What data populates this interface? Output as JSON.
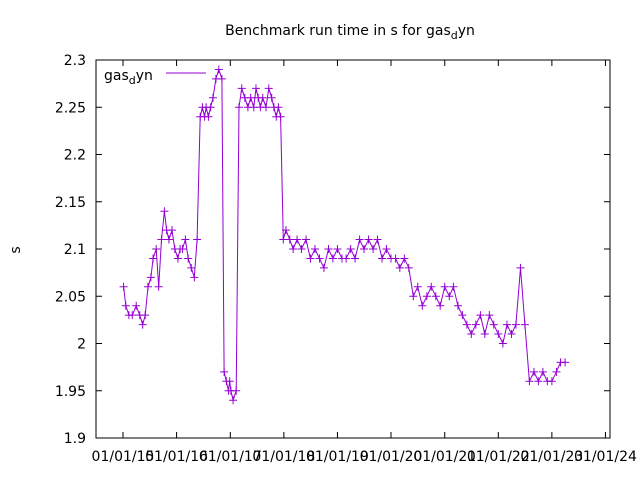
{
  "chart_data": {
    "type": "line",
    "title": {
      "prefix": "Benchmark run time in s for gas",
      "sub": "d",
      "suffix": "yn"
    },
    "ylabel": "s",
    "xlabel": "",
    "ylim": [
      1.9,
      2.3
    ],
    "yticks": [
      "1.9",
      "1.95",
      "2",
      "2.05",
      "2.1",
      "2.15",
      "2.2",
      "2.25",
      "2.3"
    ],
    "xticks": [
      "01/01/15",
      "01/01/16",
      "01/01/17",
      "01/01/18",
      "01/01/19",
      "01/01/20",
      "01/01/21",
      "01/01/22",
      "01/01/23",
      "01/01/24"
    ],
    "xlim": [
      "2014-07-01",
      "2024-02-01"
    ],
    "grid": false,
    "legend_position": "top-left",
    "series": [
      {
        "name": {
          "prefix": "gas",
          "sub": "d",
          "suffix": "yn"
        },
        "color": "#9400d3",
        "marker": "plus",
        "x": [
          "2015-01-05",
          "2015-01-20",
          "2015-02-10",
          "2015-03-05",
          "2015-04-01",
          "2015-04-25",
          "2015-05-15",
          "2015-06-01",
          "2015-06-20",
          "2015-07-10",
          "2015-07-25",
          "2015-08-15",
          "2015-09-01",
          "2015-09-20",
          "2015-10-10",
          "2015-10-25",
          "2015-11-10",
          "2015-12-01",
          "2015-12-20",
          "2016-01-10",
          "2016-01-25",
          "2016-02-10",
          "2016-03-01",
          "2016-03-20",
          "2016-04-10",
          "2016-05-01",
          "2016-05-20",
          "2016-06-10",
          "2016-06-25",
          "2016-07-10",
          "2016-07-20",
          "2016-08-05",
          "2016-08-20",
          "2016-09-05",
          "2016-09-25",
          "2016-10-15",
          "2016-11-05",
          "2016-11-20",
          "2016-12-05",
          "2016-12-20",
          "2016-12-28",
          "2017-01-05",
          "2017-01-20",
          "2017-02-10",
          "2017-03-01",
          "2017-03-20",
          "2017-04-10",
          "2017-05-01",
          "2017-05-20",
          "2017-06-10",
          "2017-06-25",
          "2017-07-10",
          "2017-07-25",
          "2017-08-10",
          "2017-09-01",
          "2017-09-20",
          "2017-10-10",
          "2017-10-25",
          "2017-11-10",
          "2017-11-25",
          "2017-12-10",
          "2017-12-28",
          "2018-01-15",
          "2018-02-10",
          "2018-03-05",
          "2018-04-01",
          "2018-05-01",
          "2018-06-01",
          "2018-07-01",
          "2018-08-01",
          "2018-09-01",
          "2018-10-01",
          "2018-11-01",
          "2018-12-01",
          "2019-01-01",
          "2019-02-01",
          "2019-03-01",
          "2019-04-01",
          "2019-05-01",
          "2019-06-01",
          "2019-07-01",
          "2019-08-01",
          "2019-09-01",
          "2019-10-01",
          "2019-11-01",
          "2019-12-01",
          "2020-01-01",
          "2020-02-01",
          "2020-03-01",
          "2020-04-01",
          "2020-05-01",
          "2020-06-01",
          "2020-07-01",
          "2020-08-01",
          "2020-09-01",
          "2020-10-01",
          "2020-11-01",
          "2020-12-01",
          "2021-01-01",
          "2021-02-01",
          "2021-03-01",
          "2021-04-01",
          "2021-05-01",
          "2021-06-01",
          "2021-07-01",
          "2021-08-01",
          "2021-09-01",
          "2021-10-01",
          "2021-11-01",
          "2021-12-01",
          "2022-01-01",
          "2022-02-01",
          "2022-03-01",
          "2022-04-01",
          "2022-05-01",
          "2022-06-01",
          "2022-07-01",
          "2022-08-01",
          "2022-09-01",
          "2022-10-01",
          "2022-11-01",
          "2022-12-01",
          "2023-01-01",
          "2023-02-01",
          "2023-03-01",
          "2023-04-01"
        ],
        "y": [
          2.06,
          2.04,
          2.03,
          2.03,
          2.04,
          2.03,
          2.02,
          2.03,
          2.06,
          2.07,
          2.09,
          2.1,
          2.06,
          2.11,
          2.14,
          2.12,
          2.11,
          2.12,
          2.1,
          2.09,
          2.1,
          2.1,
          2.11,
          2.09,
          2.08,
          2.07,
          2.11,
          2.24,
          2.25,
          2.24,
          2.25,
          2.24,
          2.25,
          2.26,
          2.28,
          2.29,
          2.28,
          1.97,
          1.96,
          1.95,
          1.96,
          1.95,
          1.94,
          1.95,
          2.25,
          2.27,
          2.26,
          2.25,
          2.26,
          2.25,
          2.27,
          2.26,
          2.25,
          2.26,
          2.25,
          2.27,
          2.26,
          2.25,
          2.24,
          2.25,
          2.24,
          2.11,
          2.12,
          2.11,
          2.1,
          2.11,
          2.1,
          2.11,
          2.09,
          2.1,
          2.09,
          2.08,
          2.1,
          2.09,
          2.1,
          2.09,
          2.09,
          2.1,
          2.09,
          2.11,
          2.1,
          2.11,
          2.1,
          2.11,
          2.09,
          2.1,
          2.09,
          2.09,
          2.08,
          2.09,
          2.08,
          2.05,
          2.06,
          2.04,
          2.05,
          2.06,
          2.05,
          2.04,
          2.06,
          2.05,
          2.06,
          2.04,
          2.03,
          2.02,
          2.01,
          2.02,
          2.03,
          2.01,
          2.03,
          2.02,
          2.01,
          2.0,
          2.02,
          2.01,
          2.02,
          2.08,
          2.02,
          1.96,
          1.97,
          1.96,
          1.97,
          1.96,
          1.96,
          1.97,
          1.98,
          1.98
        ]
      }
    ]
  }
}
